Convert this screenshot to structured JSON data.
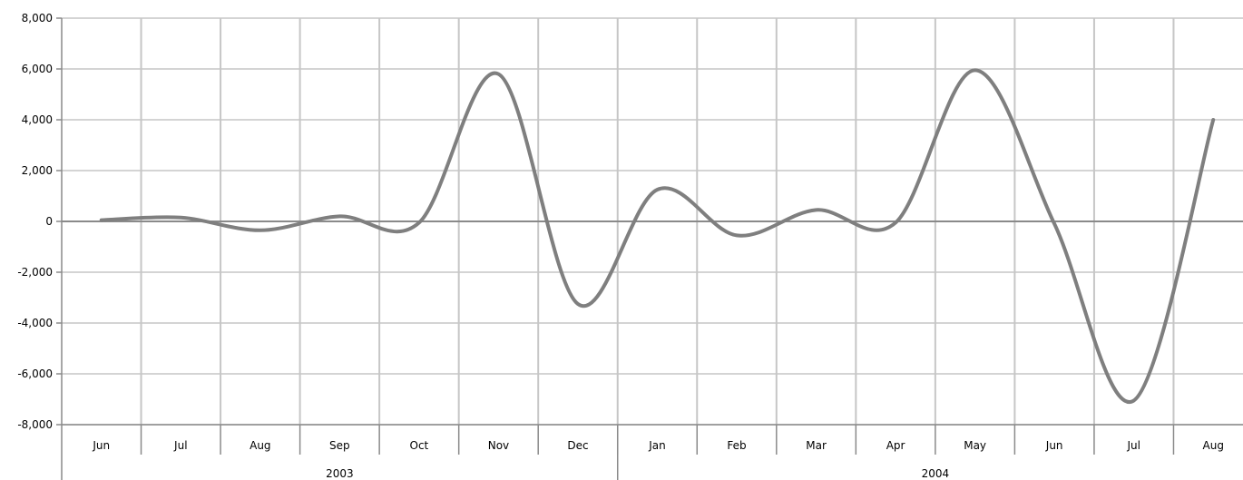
{
  "chart_data": {
    "type": "line",
    "title": "",
    "xlabel": "",
    "ylabel": "",
    "ylim": [
      -8000,
      8000
    ],
    "yticks": [
      8000,
      6000,
      4000,
      2000,
      0,
      -2000,
      -4000,
      -6000,
      -8000
    ],
    "ytick_labels": [
      "8,000",
      "6,000",
      "4,000",
      "2,000",
      "0",
      "-2,000",
      "-4,000",
      "-6,000",
      "-8,000"
    ],
    "categories": [
      "Jun",
      "Jul",
      "Aug",
      "Sep",
      "Oct",
      "Nov",
      "Dec",
      "Jan",
      "Feb",
      "Mar",
      "Apr",
      "May",
      "Jun",
      "Jul",
      "Aug"
    ],
    "groups": [
      {
        "label": "2003",
        "count": 7
      },
      {
        "label": "2004",
        "count": 8
      }
    ],
    "series": [
      {
        "values": [
          50,
          150,
          -350,
          200,
          -50,
          5800,
          -3250,
          1250,
          -550,
          450,
          -50,
          5950,
          -100,
          -7050,
          4000
        ]
      }
    ],
    "grid": true,
    "smooth": true,
    "line_color": "#7f7f7f"
  }
}
